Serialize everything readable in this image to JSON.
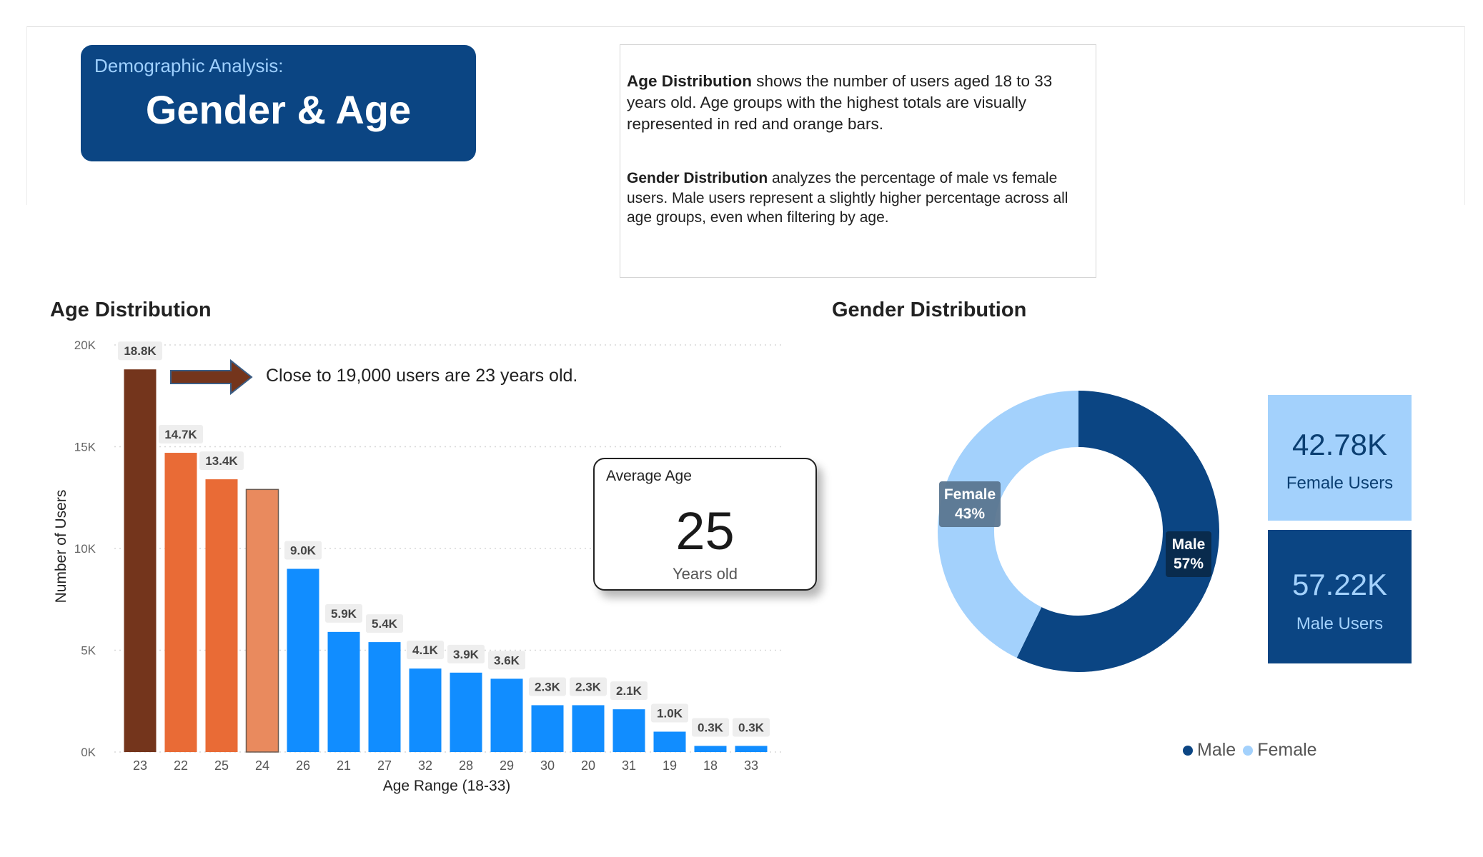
{
  "header": {
    "subtitle": "Demographic Analysis:",
    "title": "Gender & Age"
  },
  "description": {
    "age_bold": "Age Distribution",
    "age_text": " shows the number of users aged 18 to 33 years old.  Age groups with the highest totals are visually represented in red and orange bars.",
    "gender_bold": "Gender Distribution",
    "gender_text": " analyzes the percentage of male vs female users.  Male users represent a slightly higher percentage across all age groups, even when filtering by age."
  },
  "age_section": {
    "title": "Age Distribution",
    "annotation": "Close to 19,000 users are 23 years old.",
    "average_card": {
      "label": "Average Age",
      "value": "25",
      "unit": "Years old"
    }
  },
  "gender_section": {
    "title": "Gender Distribution",
    "female_kpi": {
      "value": "42.78K",
      "label": "Female Users"
    },
    "male_kpi": {
      "value": "57.22K",
      "label": "Male Users"
    },
    "legend": [
      {
        "label": "Male",
        "color": "#0b4583"
      },
      {
        "label": "Female",
        "color": "#a3d1fc"
      }
    ]
  },
  "chart_data": [
    {
      "type": "bar",
      "title": "Age Distribution",
      "xlabel": "Age Range (18-33)",
      "ylabel": "Number of Users",
      "ylim": [
        0,
        20000
      ],
      "yticks": [
        0,
        5000,
        10000,
        15000,
        20000
      ],
      "ytick_labels": [
        "0K",
        "5K",
        "10K",
        "15K",
        "20K"
      ],
      "grid": true,
      "categories": [
        "23",
        "22",
        "25",
        "24",
        "26",
        "21",
        "27",
        "32",
        "28",
        "29",
        "30",
        "20",
        "31",
        "19",
        "18",
        "33"
      ],
      "values": [
        18800,
        14700,
        13400,
        12900,
        9000,
        5900,
        5400,
        4100,
        3900,
        3600,
        2300,
        2300,
        2100,
        1000,
        300,
        300
      ],
      "data_labels": [
        "18.8K",
        "14.7K",
        "13.4K",
        "",
        "9.0K",
        "5.9K",
        "5.4K",
        "4.1K",
        "3.9K",
        "3.6K",
        "2.3K",
        "2.3K",
        "2.1K",
        "1.0K",
        "0.3K",
        "0.3K"
      ],
      "colors": [
        "#74351c",
        "#e96b36",
        "#e96b36",
        "#e98a5e",
        "#118dff",
        "#118dff",
        "#118dff",
        "#118dff",
        "#118dff",
        "#118dff",
        "#118dff",
        "#118dff",
        "#118dff",
        "#118dff",
        "#118dff",
        "#118dff"
      ]
    },
    {
      "type": "pie",
      "title": "Gender Distribution",
      "donut": true,
      "categories": [
        "Male",
        "Female"
      ],
      "values": [
        57.22,
        42.78
      ],
      "labels": [
        "Male\n57%",
        "Female\n43%"
      ],
      "colors": [
        "#0b4583",
        "#a3d1fc"
      ],
      "legend": "bottom-right"
    }
  ]
}
